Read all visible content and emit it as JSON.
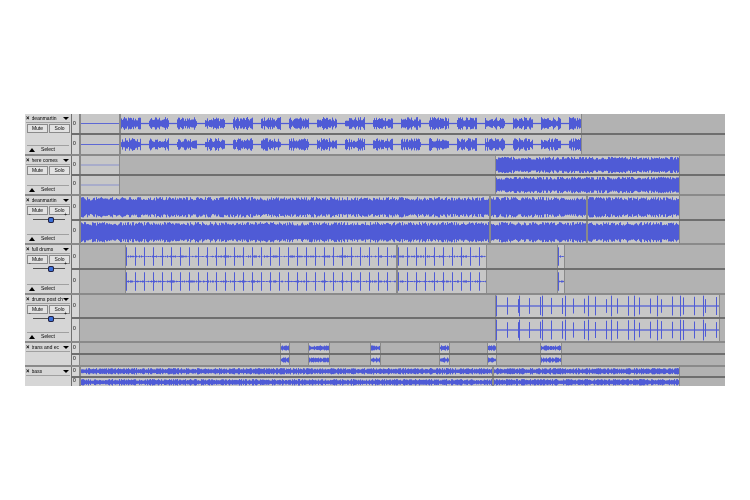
{
  "colors": {
    "waveform": "#4f5bd6",
    "clip": "#c7c7c7",
    "lane": "#b2b2b2",
    "panel": "#d6d6d6"
  },
  "controls": {
    "close": "×",
    "mute": "Mute",
    "solo": "Solo",
    "select": "Select",
    "minus": "-",
    "plus": "+"
  },
  "tracks": [
    {
      "name": "deanmartin",
      "scale_top": "0",
      "scale_bottom": "0"
    },
    {
      "name": "here comes",
      "scale_top": "0",
      "scale_bottom": "0"
    },
    {
      "name": "deanmartin",
      "scale_top": "0",
      "scale_bottom": "0"
    },
    {
      "name": "full drums",
      "scale_top": "0",
      "scale_bottom": "0"
    },
    {
      "name": "drums post ch",
      "scale_top": "0",
      "scale_bottom": "0"
    },
    {
      "name": "trans and ec",
      "scale_top": "0",
      "scale_bottom": "0"
    },
    {
      "name": "bass",
      "scale_top": "0",
      "scale_bottom": "0"
    }
  ]
}
